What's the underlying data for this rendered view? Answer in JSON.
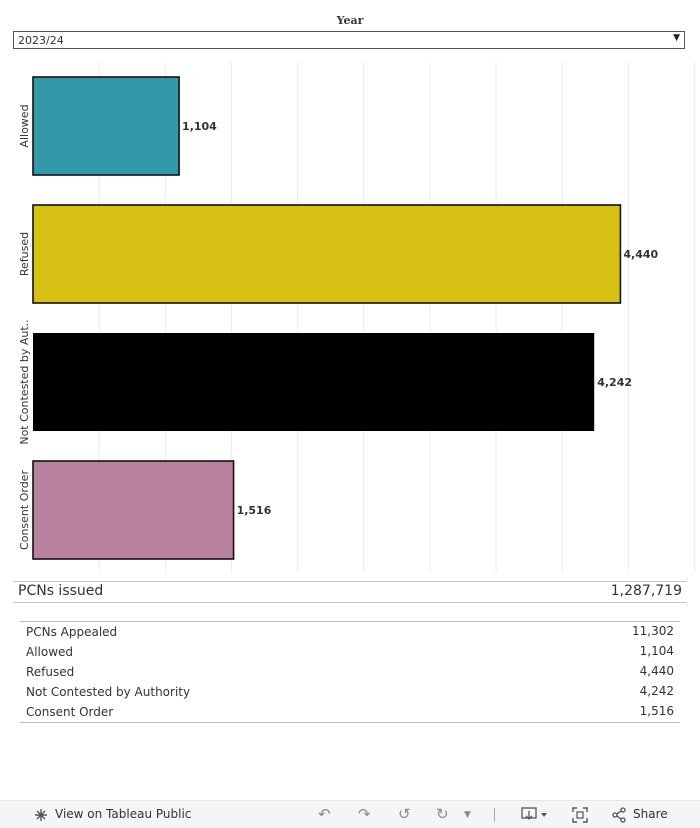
{
  "filter": {
    "title": "Year",
    "selected": "2023/24",
    "arrow": "▼"
  },
  "chart_data": {
    "type": "bar",
    "orientation": "horizontal",
    "categories": [
      "Allowed",
      "Refused",
      "Not Contested by Aut..",
      "Consent Order"
    ],
    "values": [
      1104,
      4440,
      4242,
      1516
    ],
    "value_labels": [
      "1,104",
      "4,440",
      "4,242",
      "1,516"
    ],
    "colors": [
      "#3399a8",
      "#d6c014",
      "#000000",
      "#b8819f"
    ],
    "xlim": [
      0,
      5000
    ],
    "grid": true
  },
  "pcns_issued": {
    "label": "PCNs issued",
    "value": "1,287,719"
  },
  "summary": [
    {
      "label": "PCNs Appealed",
      "value": "11,302"
    },
    {
      "label": "Allowed",
      "value": "1,104"
    },
    {
      "label": "Refused",
      "value": "4,440"
    },
    {
      "label": "Not Contested by Authority",
      "value": "4,242"
    },
    {
      "label": "Consent Order",
      "value": "1,516"
    }
  ],
  "footer": {
    "tableau_icon": "tableau-logo-icon",
    "view_label": "View on Tableau Public",
    "share_label": "Share",
    "icons": [
      "undo-icon",
      "redo-icon",
      "revert-icon",
      "refresh-icon",
      "pause-dropdown-icon",
      "download-icon",
      "fullscreen-icon",
      "share-icon"
    ]
  }
}
